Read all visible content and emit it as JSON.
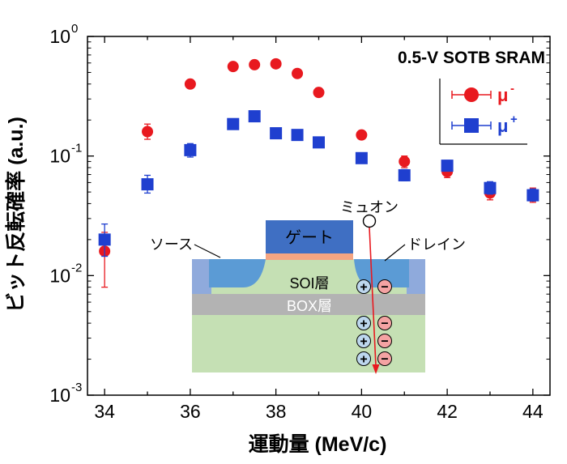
{
  "chart_data": {
    "type": "scatter",
    "title": "0.5-V SOTB SRAM",
    "xlabel": "運動量 (MeV/c)",
    "ylabel": "ビット反転確率 (a.u.)",
    "xlim": [
      33.6,
      44.4
    ],
    "ylim": [
      0.001,
      1
    ],
    "y_scale": "log",
    "grid": false,
    "x_ticks": [
      34,
      36,
      38,
      40,
      42,
      44
    ],
    "y_ticks": [
      {
        "base": "10",
        "exp": "0",
        "value": 1
      },
      {
        "base": "10",
        "exp": "-1",
        "value": 0.1
      },
      {
        "base": "10",
        "exp": "-2",
        "value": 0.01
      },
      {
        "base": "10",
        "exp": "-3",
        "value": 0.001
      }
    ],
    "legend": {
      "position": "top-right",
      "entries": [
        {
          "label": "μ",
          "sup": "-",
          "color": "#e8191f",
          "marker": "circle"
        },
        {
          "label": "μ",
          "sup": "+",
          "color": "#1f3fcf",
          "marker": "square"
        }
      ]
    },
    "series": [
      {
        "color": "#e8191f",
        "marker": "circle",
        "points": [
          {
            "x": 34,
            "y": 0.016,
            "lo": 0.008,
            "hi": 0.023
          },
          {
            "x": 35,
            "y": 0.16,
            "lo": 0.138,
            "hi": 0.185
          },
          {
            "x": 36,
            "y": 0.4,
            "lo": 0.38,
            "hi": 0.42
          },
          {
            "x": 37,
            "y": 0.56,
            "lo": 0.54,
            "hi": 0.58
          },
          {
            "x": 37.5,
            "y": 0.58,
            "lo": 0.56,
            "hi": 0.6
          },
          {
            "x": 38,
            "y": 0.59,
            "lo": 0.57,
            "hi": 0.61
          },
          {
            "x": 38.5,
            "y": 0.49,
            "lo": 0.47,
            "hi": 0.51
          },
          {
            "x": 39,
            "y": 0.34,
            "lo": 0.325,
            "hi": 0.355
          },
          {
            "x": 40,
            "y": 0.15,
            "lo": 0.14,
            "hi": 0.16
          },
          {
            "x": 41,
            "y": 0.09,
            "lo": 0.08,
            "hi": 0.1
          },
          {
            "x": 42,
            "y": 0.074,
            "lo": 0.066,
            "hi": 0.082
          },
          {
            "x": 43,
            "y": 0.049,
            "lo": 0.043,
            "hi": 0.056
          },
          {
            "x": 44,
            "y": 0.047,
            "lo": 0.041,
            "hi": 0.054
          }
        ]
      },
      {
        "color": "#1f3fcf",
        "marker": "square",
        "points": [
          {
            "x": 34,
            "y": 0.02,
            "lo": 0.0145,
            "hi": 0.027
          },
          {
            "x": 35,
            "y": 0.058,
            "lo": 0.049,
            "hi": 0.069
          },
          {
            "x": 36,
            "y": 0.112,
            "lo": 0.098,
            "hi": 0.127
          },
          {
            "x": 37,
            "y": 0.185,
            "lo": 0.17,
            "hi": 0.2
          },
          {
            "x": 37.5,
            "y": 0.215,
            "lo": 0.2,
            "hi": 0.23
          },
          {
            "x": 38,
            "y": 0.155,
            "lo": 0.145,
            "hi": 0.165
          },
          {
            "x": 38.5,
            "y": 0.15,
            "lo": 0.14,
            "hi": 0.16
          },
          {
            "x": 39,
            "y": 0.13,
            "lo": 0.12,
            "hi": 0.14
          },
          {
            "x": 40,
            "y": 0.096,
            "lo": 0.088,
            "hi": 0.105
          },
          {
            "x": 41,
            "y": 0.069,
            "lo": 0.062,
            "hi": 0.077
          },
          {
            "x": 42,
            "y": 0.083,
            "lo": 0.075,
            "hi": 0.092
          },
          {
            "x": 43,
            "y": 0.054,
            "lo": 0.048,
            "hi": 0.061
          },
          {
            "x": 44,
            "y": 0.047,
            "lo": 0.042,
            "hi": 0.053
          }
        ]
      }
    ]
  },
  "inset": {
    "gate_label": "ゲート",
    "source_label": "ソース",
    "drain_label": "ドレイン",
    "muon_label": "ミュオン",
    "soi_label": "SOI層",
    "box_label": "BOX層",
    "plus_sign": "+",
    "minus_sign": "−",
    "colors": {
      "gate": "#3f6fc3",
      "gate_oxide": "#f4a582",
      "sd": "#5b9bd5",
      "sd_edge": "#8faadc",
      "soi": "#c5e0b4",
      "box": "#b3b3b3",
      "substrate": "#c5e0b4",
      "hole": "#bdd7ee",
      "electron": "#f4a3a3",
      "track": "#e8191f"
    }
  }
}
